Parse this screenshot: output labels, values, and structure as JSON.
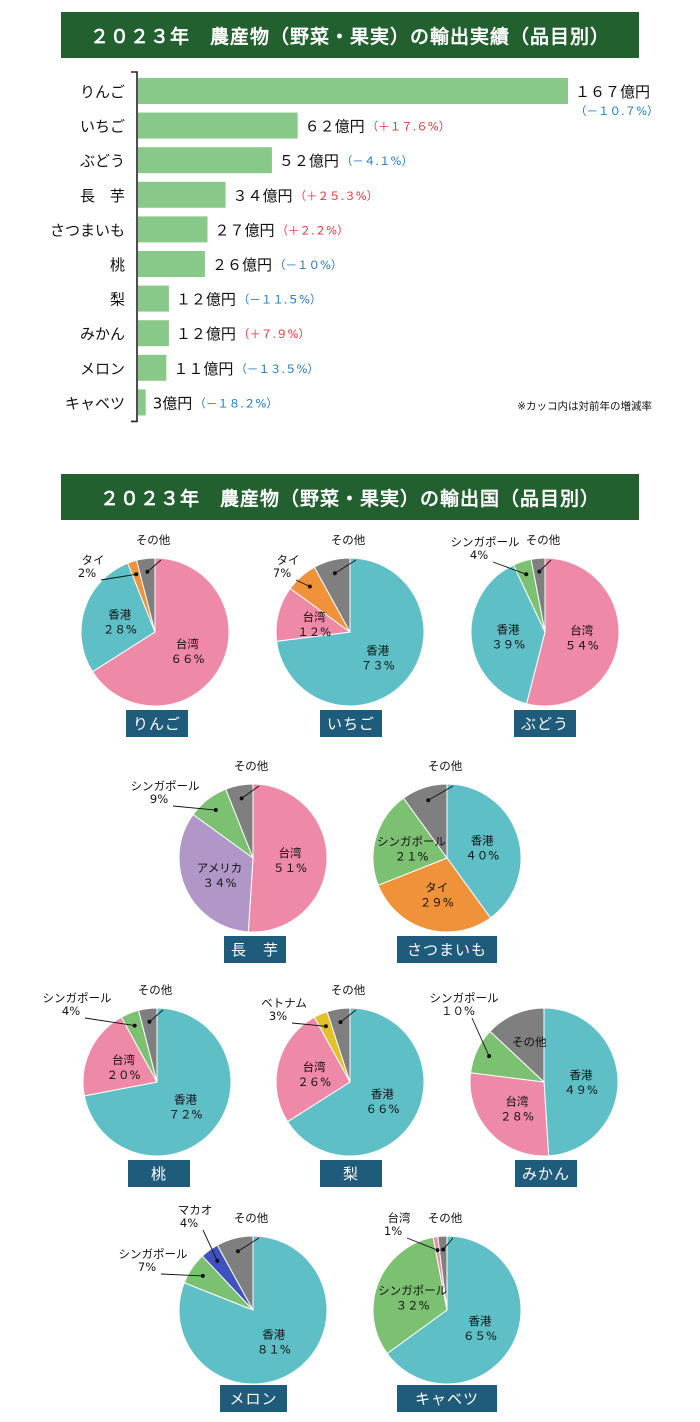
{
  "colors": {
    "banner": "#23602f",
    "bar": "#88c98a",
    "increase": "#e8343f",
    "decrease": "#1f78c1",
    "caption": "#1f5b7a"
  },
  "sections": {
    "export_title": "２０２３年　農産物（野菜・果実）の輸出実績（品目別）",
    "country_title": "２０２３年　農産物（野菜・果実）の輸出国（品目別）",
    "footnote": "※カッコ内は対前年の増減率"
  },
  "chart_data": [
    {
      "type": "bar",
      "orientation": "horizontal",
      "title": "２０２３年　農産物（野菜・果実）の輸出実績（品目別）",
      "categories": [
        "りんご",
        "いちご",
        "ぶどう",
        "長　芋",
        "さつまいも",
        "桃",
        "梨",
        "みかん",
        "メロン",
        "キャベツ"
      ],
      "values": [
        167,
        62,
        52,
        34,
        27,
        26,
        12,
        12,
        11,
        3
      ],
      "value_labels": [
        "１６７億円",
        "６２億円",
        "５２億円",
        "３４億円",
        "２７億円",
        "２６億円",
        "１２億円",
        "１２億円",
        "１１億円",
        "3億円"
      ],
      "changes": [
        -10.7,
        17.6,
        -4.1,
        25.3,
        2.2,
        -10,
        -11.5,
        7.9,
        -13.5,
        -18.2
      ],
      "change_labels": [
        "（－１０.７%）",
        "（＋１７.６%）",
        "（－４.１%）",
        "（＋２５.３%）",
        "（＋２.２%）",
        "（－１０%）",
        "（－１１.５%）",
        "（＋７.９%）",
        "（－１３.５%）",
        "（－１８.２%）"
      ],
      "unit": "億円",
      "xlim": [
        0,
        167
      ],
      "grid": false,
      "legend": "none"
    },
    {
      "type": "pie",
      "title": "２０２３年　農産物（野菜・果実）の輸出国（品目別）",
      "charts": [
        {
          "name": "りんご",
          "slices": [
            {
              "label": "台湾",
              "value": 66,
              "value_label": "６６%",
              "color": "#ee89a8"
            },
            {
              "label": "香港",
              "value": 28,
              "value_label": "２８%",
              "color": "#5fbfc6"
            },
            {
              "label": "タイ",
              "value": 2,
              "value_label": "2%",
              "color": "#f0923a"
            },
            {
              "label": "その他",
              "value": 4,
              "value_label": "",
              "color": "#7f7f7f"
            }
          ]
        },
        {
          "name": "いちご",
          "slices": [
            {
              "label": "香港",
              "value": 73,
              "value_label": "７３%",
              "color": "#5fbfc6"
            },
            {
              "label": "台湾",
              "value": 12,
              "value_label": "１２%",
              "color": "#ee89a8"
            },
            {
              "label": "タイ",
              "value": 7,
              "value_label": "7%",
              "color": "#f0923a"
            },
            {
              "label": "その他",
              "value": 8,
              "value_label": "",
              "color": "#7f7f7f"
            }
          ]
        },
        {
          "name": "ぶどう",
          "slices": [
            {
              "label": "台湾",
              "value": 54,
              "value_label": "５４%",
              "color": "#ee89a8"
            },
            {
              "label": "香港",
              "value": 39,
              "value_label": "３９%",
              "color": "#5fbfc6"
            },
            {
              "label": "シンガポール",
              "value": 4,
              "value_label": "4%",
              "color": "#7cc172"
            },
            {
              "label": "その他",
              "value": 3,
              "value_label": "",
              "color": "#7f7f7f"
            }
          ]
        },
        {
          "name": "長　芋",
          "slices": [
            {
              "label": "台湾",
              "value": 51,
              "value_label": "５１%",
              "color": "#ee89a8"
            },
            {
              "label": "アメリカ",
              "value": 34,
              "value_label": "３４%",
              "color": "#b097c7"
            },
            {
              "label": "シンガポール",
              "value": 9,
              "value_label": "9%",
              "color": "#7cc172"
            },
            {
              "label": "その他",
              "value": 6,
              "value_label": "",
              "color": "#7f7f7f"
            }
          ]
        },
        {
          "name": "さつまいも",
          "slices": [
            {
              "label": "香港",
              "value": 40,
              "value_label": "４０%",
              "color": "#5fbfc6"
            },
            {
              "label": "タイ",
              "value": 29,
              "value_label": "２９%",
              "color": "#f0923a"
            },
            {
              "label": "シンガポール",
              "value": 21,
              "value_label": "２１%",
              "color": "#7cc172"
            },
            {
              "label": "その他",
              "value": 10,
              "value_label": "",
              "color": "#7f7f7f"
            }
          ]
        },
        {
          "name": "桃",
          "slices": [
            {
              "label": "香港",
              "value": 72,
              "value_label": "７２%",
              "color": "#5fbfc6"
            },
            {
              "label": "台湾",
              "value": 20,
              "value_label": "２０%",
              "color": "#ee89a8"
            },
            {
              "label": "シンガポール",
              "value": 4,
              "value_label": "4%",
              "color": "#7cc172"
            },
            {
              "label": "その他",
              "value": 4,
              "value_label": "",
              "color": "#7f7f7f"
            }
          ]
        },
        {
          "name": "梨",
          "slices": [
            {
              "label": "香港",
              "value": 66,
              "value_label": "６６%",
              "color": "#5fbfc6"
            },
            {
              "label": "台湾",
              "value": 26,
              "value_label": "２６%",
              "color": "#ee89a8"
            },
            {
              "label": "ベトナム",
              "value": 3,
              "value_label": "3%",
              "color": "#e3c12b"
            },
            {
              "label": "その他",
              "value": 5,
              "value_label": "",
              "color": "#7f7f7f"
            }
          ]
        },
        {
          "name": "みかん",
          "slices": [
            {
              "label": "香港",
              "value": 49,
              "value_label": "４９%",
              "color": "#5fbfc6"
            },
            {
              "label": "台湾",
              "value": 28,
              "value_label": "２８%",
              "color": "#ee89a8"
            },
            {
              "label": "シンガポール",
              "value": 10,
              "value_label": "１０%",
              "color": "#7cc172"
            },
            {
              "label": "その他",
              "value": 13,
              "value_label": "",
              "color": "#7f7f7f"
            }
          ]
        },
        {
          "name": "メロン",
          "slices": [
            {
              "label": "香港",
              "value": 81,
              "value_label": "８１%",
              "color": "#5fbfc6"
            },
            {
              "label": "シンガポール",
              "value": 7,
              "value_label": "7%",
              "color": "#7cc172"
            },
            {
              "label": "マカオ",
              "value": 4,
              "value_label": "4%",
              "color": "#3f52bf"
            },
            {
              "label": "その他",
              "value": 8,
              "value_label": "",
              "color": "#7f7f7f"
            }
          ]
        },
        {
          "name": "キャベツ",
          "slices": [
            {
              "label": "香港",
              "value": 65,
              "value_label": "６５%",
              "color": "#5fbfc6"
            },
            {
              "label": "シンガポール",
              "value": 32,
              "value_label": "３２%",
              "color": "#7cc172"
            },
            {
              "label": "台湾",
              "value": 1,
              "value_label": "1%",
              "color": "#ee89a8"
            },
            {
              "label": "その他",
              "value": 2,
              "value_label": "",
              "color": "#7f7f7f"
            }
          ]
        }
      ]
    }
  ]
}
